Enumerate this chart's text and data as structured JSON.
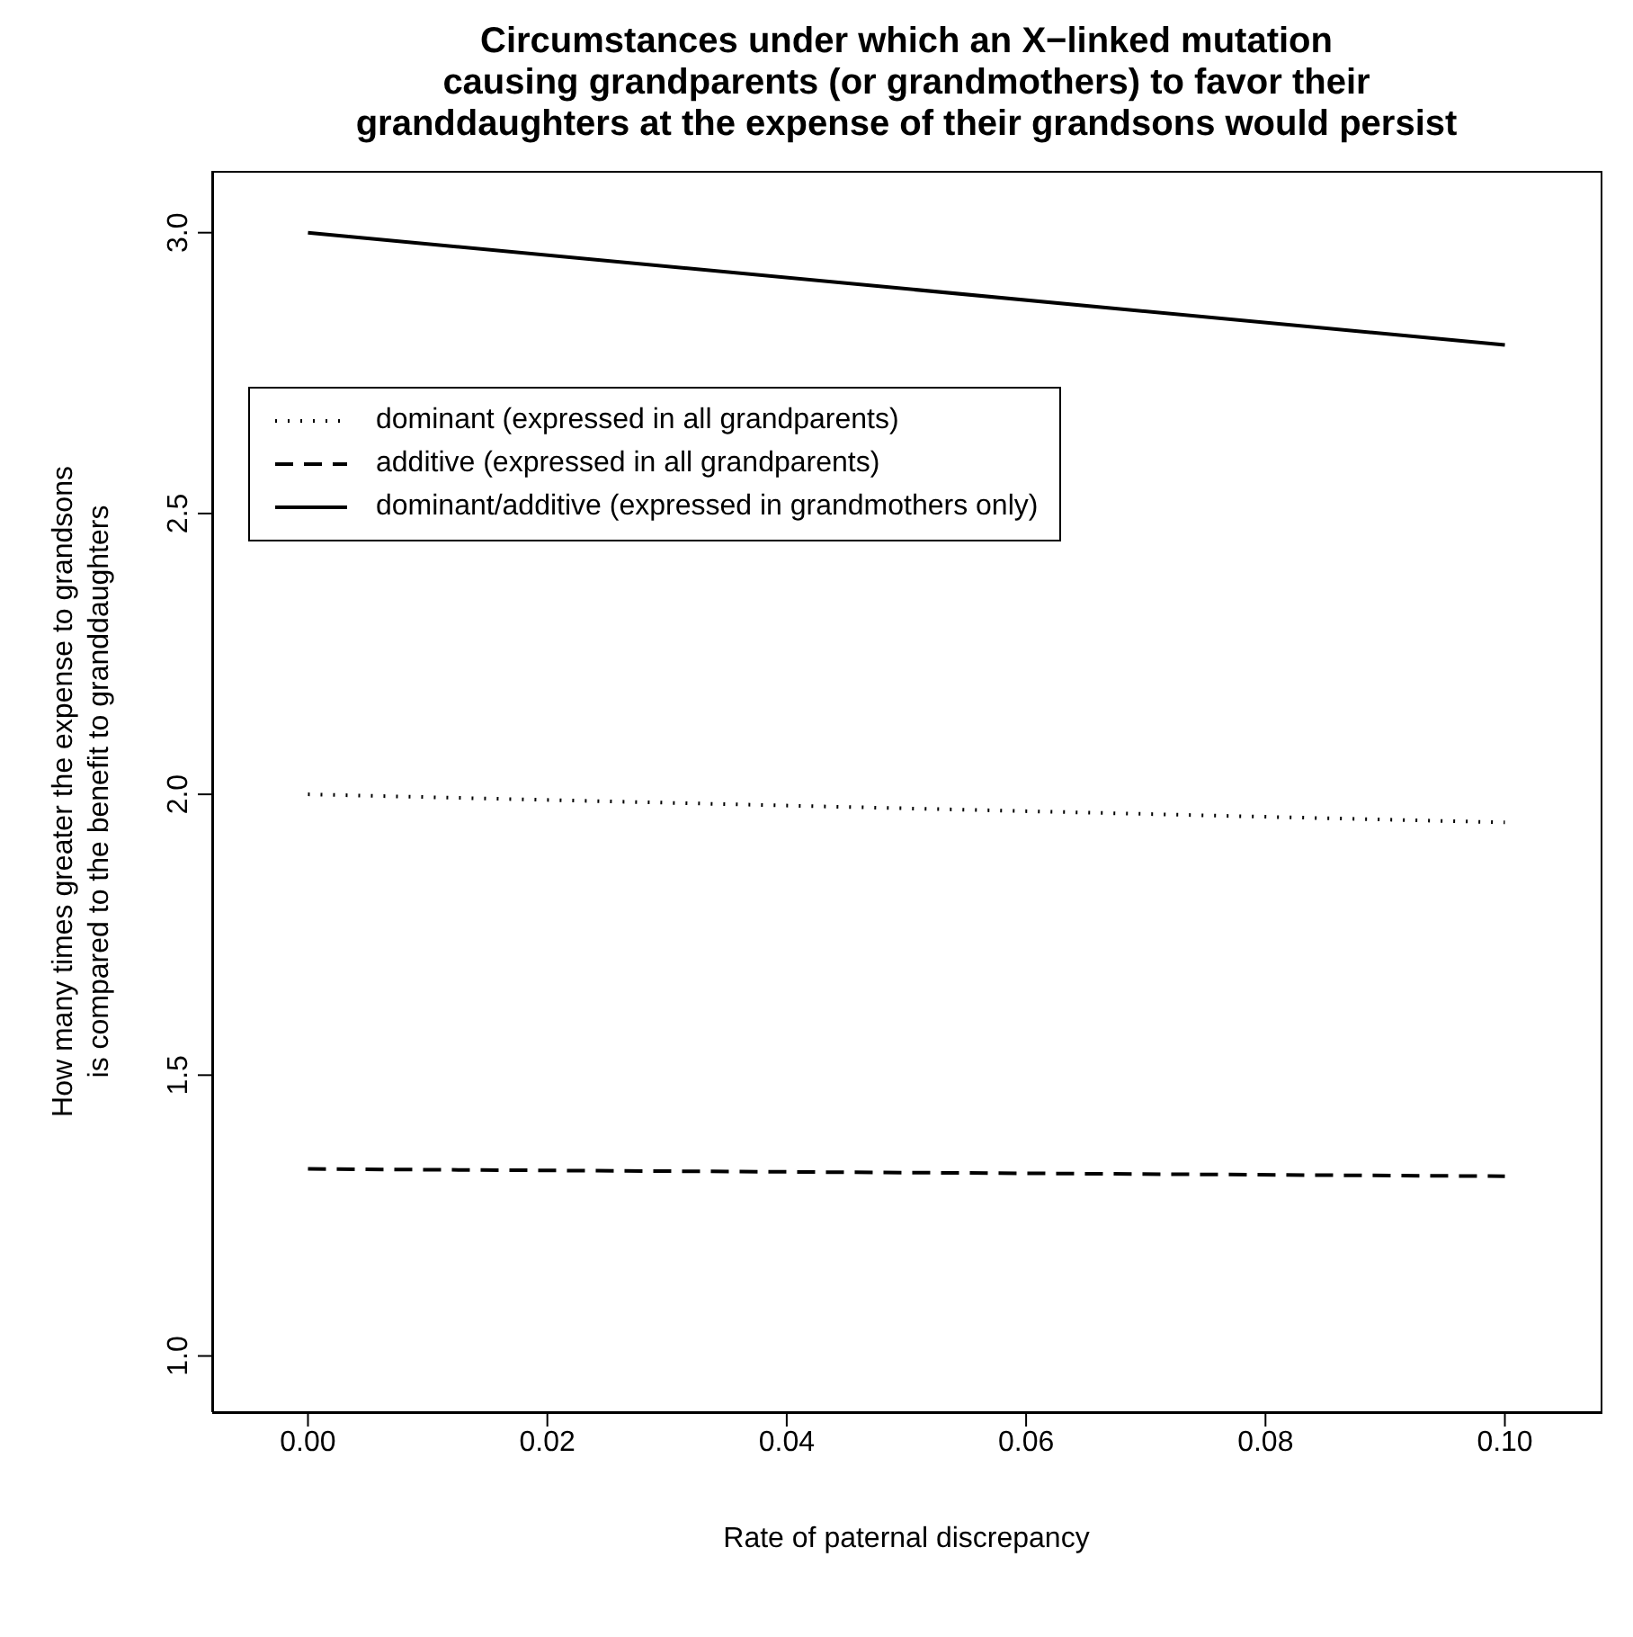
{
  "chart_data": {
    "type": "line",
    "title": "Circumstances under which an X−linked mutation\ncausing grandparents (or grandmothers) to favor their\ngranddaughters at the expense of their grandsons would persist",
    "xlabel": "Rate of paternal discrepancy",
    "ylabel": "How many times greater the expense to grandsons is compared to the benefit to granddaughters",
    "x": [
      0,
      0.1
    ],
    "series": [
      {
        "name": "dominant (expressed in all grandparents)",
        "color": "#000000",
        "line_style": "dotted",
        "values": [
          2.0,
          1.95
        ]
      },
      {
        "name": "additive (expressed in all grandparents)",
        "color": "#000000",
        "line_style": "dashed",
        "values": [
          1.333,
          1.32
        ]
      },
      {
        "name": "dominant/additive (expressed in grandmothers only)",
        "color": "#000000",
        "line_style": "solid",
        "values": [
          3.0,
          2.8
        ]
      }
    ],
    "xlim": [
      -0.008,
      0.108
    ],
    "xticks": [
      {
        "value": 0,
        "label": "0.00"
      },
      0.02,
      0.04,
      0.06,
      0.08,
      {
        "value": 0.1,
        "label": "0.10"
      }
    ],
    "ylim": [
      0.9,
      3.11
    ],
    "yticks": [
      {
        "value": 1,
        "label": "1.0"
      },
      1.5,
      {
        "value": 2,
        "label": "2.0"
      },
      2.5,
      {
        "value": 3,
        "label": "3.0"
      }
    ],
    "grid": false,
    "legend": "top left",
    "marker": "none"
  }
}
